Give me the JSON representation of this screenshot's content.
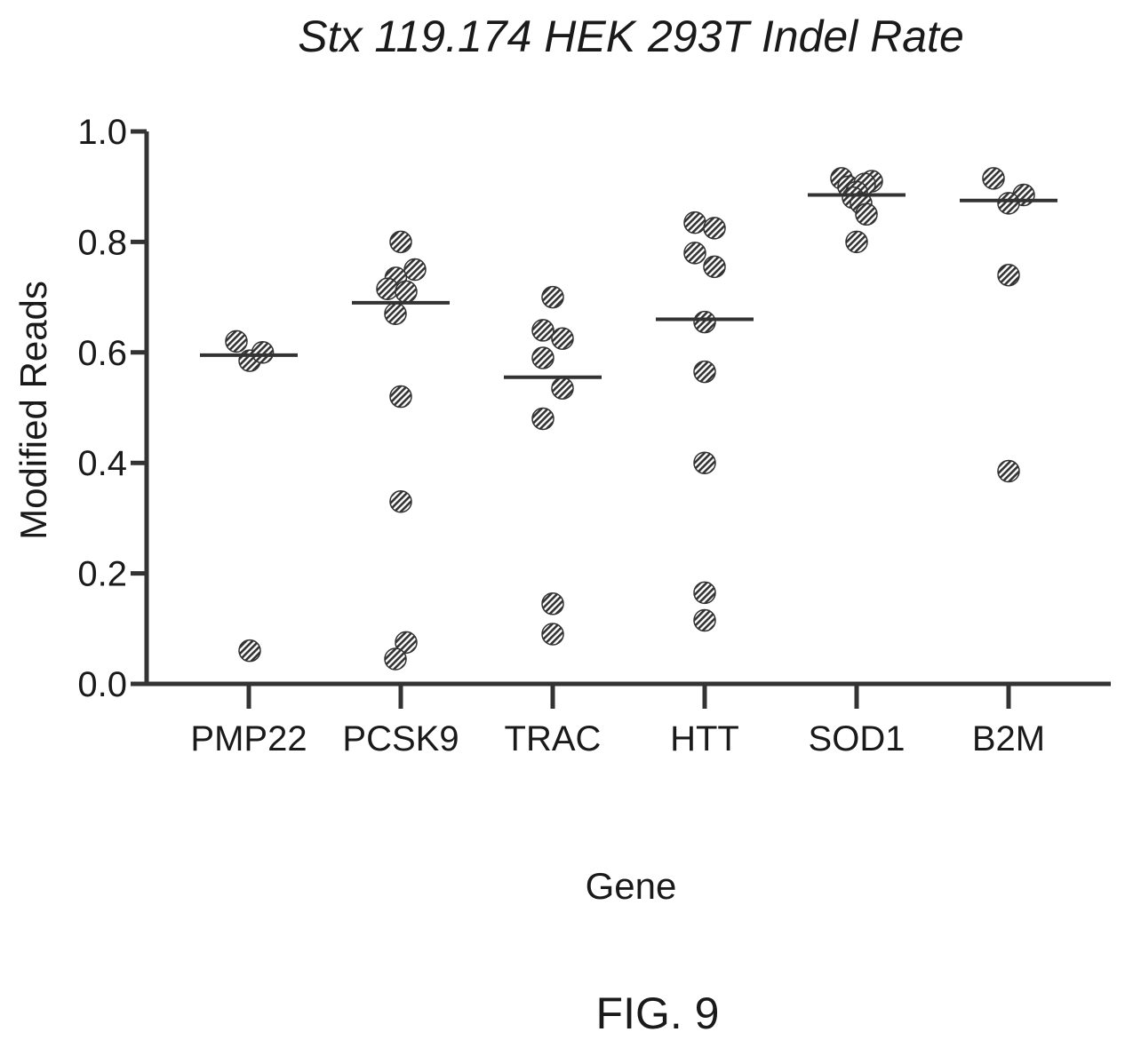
{
  "figure_label": "FIG. 9",
  "chart_data": {
    "type": "scatter",
    "title": "Stx 119.174 HEK 293T Indel Rate",
    "xlabel": "Gene",
    "ylabel": "Modified Reads",
    "ylim": [
      0,
      1.0
    ],
    "yticks": [
      "0.0",
      "0.2",
      "0.4",
      "0.6",
      "0.8",
      "1.0"
    ],
    "categories": [
      "PMP22",
      "PCSK9",
      "TRAC",
      "HTT",
      "SOD1",
      "B2M"
    ],
    "grid": false,
    "legend": "none",
    "point_color": "#333333",
    "series": [
      {
        "category": "PMP22",
        "median": 0.595,
        "points": [
          {
            "y": 0.62,
            "j": -0.7
          },
          {
            "y": 0.585,
            "j": 0.05
          },
          {
            "y": 0.6,
            "j": 0.78
          },
          {
            "y": 0.06,
            "j": 0.05
          }
        ]
      },
      {
        "category": "PCSK9",
        "median": 0.69,
        "points": [
          {
            "y": 0.8,
            "j": 0.0
          },
          {
            "y": 0.75,
            "j": 0.8
          },
          {
            "y": 0.735,
            "j": -0.28
          },
          {
            "y": 0.715,
            "j": -0.75
          },
          {
            "y": 0.71,
            "j": 0.3
          },
          {
            "y": 0.67,
            "j": -0.3
          },
          {
            "y": 0.52,
            "j": 0.0
          },
          {
            "y": 0.33,
            "j": 0.0
          },
          {
            "y": 0.075,
            "j": 0.3
          },
          {
            "y": 0.045,
            "j": -0.3
          }
        ]
      },
      {
        "category": "TRAC",
        "median": 0.555,
        "points": [
          {
            "y": 0.7,
            "j": 0.0
          },
          {
            "y": 0.64,
            "j": -0.55
          },
          {
            "y": 0.625,
            "j": 0.55
          },
          {
            "y": 0.59,
            "j": -0.55
          },
          {
            "y": 0.535,
            "j": 0.55
          },
          {
            "y": 0.48,
            "j": -0.55
          },
          {
            "y": 0.145,
            "j": 0.0
          },
          {
            "y": 0.09,
            "j": 0.0
          }
        ]
      },
      {
        "category": "HTT",
        "median": 0.66,
        "points": [
          {
            "y": 0.835,
            "j": -0.55
          },
          {
            "y": 0.825,
            "j": 0.55
          },
          {
            "y": 0.78,
            "j": -0.55
          },
          {
            "y": 0.755,
            "j": 0.55
          },
          {
            "y": 0.655,
            "j": 0.0
          },
          {
            "y": 0.565,
            "j": 0.0
          },
          {
            "y": 0.4,
            "j": 0.0
          },
          {
            "y": 0.165,
            "j": 0.0
          },
          {
            "y": 0.115,
            "j": 0.0
          }
        ]
      },
      {
        "category": "SOD1",
        "median": 0.885,
        "points": [
          {
            "y": 0.915,
            "j": -0.85
          },
          {
            "y": 0.91,
            "j": 0.85
          },
          {
            "y": 0.9,
            "j": -0.45
          },
          {
            "y": 0.905,
            "j": 0.45
          },
          {
            "y": 0.89,
            "j": 0.0
          },
          {
            "y": 0.88,
            "j": -0.2
          },
          {
            "y": 0.87,
            "j": 0.25
          },
          {
            "y": 0.85,
            "j": 0.55
          },
          {
            "y": 0.8,
            "j": 0.0
          }
        ]
      },
      {
        "category": "B2M",
        "median": 0.875,
        "points": [
          {
            "y": 0.915,
            "j": -0.85
          },
          {
            "y": 0.885,
            "j": 0.85
          },
          {
            "y": 0.87,
            "j": 0.0
          },
          {
            "y": 0.74,
            "j": 0.0
          },
          {
            "y": 0.385,
            "j": 0.0
          }
        ]
      }
    ]
  }
}
